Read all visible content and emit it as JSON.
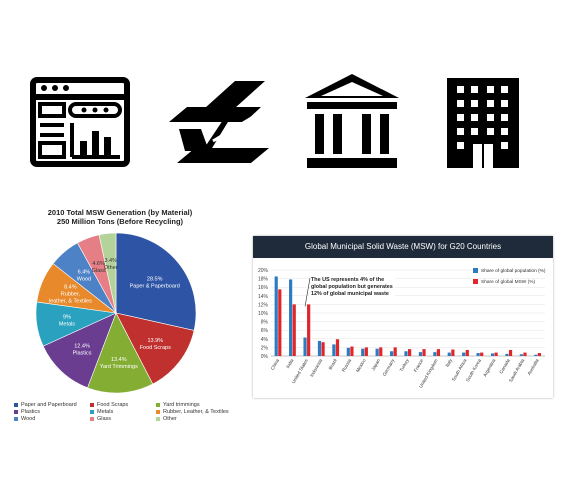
{
  "icons": [
    {
      "name": "dashboard-icon"
    },
    {
      "name": "steel-beam-icon"
    },
    {
      "name": "government-building-icon"
    },
    {
      "name": "office-building-icon"
    }
  ],
  "chart_data": [
    {
      "type": "pie",
      "title": "2010 Total MSW Generation (by Material)",
      "subtitle": "250 Million Tons (Before Recycling)",
      "slices": [
        {
          "label": "Paper & Paperboard",
          "value": 28.5,
          "pct_label": "28.5%",
          "color": "#2e55a5",
          "legend": "Paper and Paperboard"
        },
        {
          "label": "Food Scraps",
          "value": 13.9,
          "pct_label": "13.9%",
          "color": "#c0302f",
          "legend": "Food Scraps"
        },
        {
          "label": "Yard Trimmings",
          "value": 13.4,
          "pct_label": "13.4%",
          "color": "#84ae33",
          "legend": "Yard trimmings"
        },
        {
          "label": "Plastics",
          "value": 12.4,
          "pct_label": "12.4%",
          "color": "#6a3d91",
          "legend": "Plastics"
        },
        {
          "label": "Metals",
          "value": 9.0,
          "pct_label": "9%",
          "color": "#2aa2bf",
          "legend": "Metals"
        },
        {
          "label": "Rubber, leather, & Textiles",
          "value": 8.4,
          "pct_label": "8.4%",
          "color": "#e8892b",
          "legend": "Rubber, Leather, & Textiles"
        },
        {
          "label": "Wood",
          "value": 6.4,
          "pct_label": "6.4%",
          "color": "#4d82c7",
          "legend": "Wood"
        },
        {
          "label": "Glass",
          "value": 4.6,
          "pct_label": "4.6%",
          "color": "#e57f85",
          "legend": "Glass"
        },
        {
          "label": "Other",
          "value": 3.4,
          "pct_label": "3.4%",
          "color": "#b3d39a",
          "legend": "Other"
        }
      ],
      "legend_position": "bottom"
    },
    {
      "type": "bar",
      "title": "Global Municipal Solid Waste (MSW) for G20 Countries",
      "categories": [
        "China",
        "India",
        "United States",
        "Indonesia",
        "Brazil",
        "Russia",
        "Mexico",
        "Japan",
        "Germany",
        "Turkey",
        "France",
        "United Kingdom",
        "Italy",
        "South Africa",
        "South Korea",
        "Argentina",
        "Canada",
        "Saudi Arabia",
        "Australia"
      ],
      "series": [
        {
          "name": "Share of global population (%)",
          "color": "#2f7bbf",
          "values": [
            18.5,
            17.8,
            4.3,
            3.5,
            2.7,
            1.9,
            1.7,
            1.7,
            1.1,
            1.1,
            0.9,
            0.9,
            0.8,
            0.8,
            0.7,
            0.6,
            0.5,
            0.4,
            0.3
          ]
        },
        {
          "name": "Share of global MSW (%)",
          "color": "#e0262b",
          "values": [
            15.5,
            12.0,
            12.0,
            3.2,
            3.9,
            2.2,
            2.0,
            2.0,
            2.0,
            1.6,
            1.6,
            1.6,
            1.5,
            1.4,
            0.8,
            0.8,
            1.4,
            0.8,
            0.7
          ]
        }
      ],
      "yticks": [
        "0%",
        "2%",
        "4%",
        "6%",
        "8%",
        "10%",
        "12%",
        "14%",
        "16%",
        "18%",
        "20%"
      ],
      "ylim": [
        0,
        20
      ],
      "annotation": [
        "The US represents 4% of the",
        "global population but generates",
        "12% of global municipal waste"
      ],
      "legend_position": "top-right"
    }
  ]
}
